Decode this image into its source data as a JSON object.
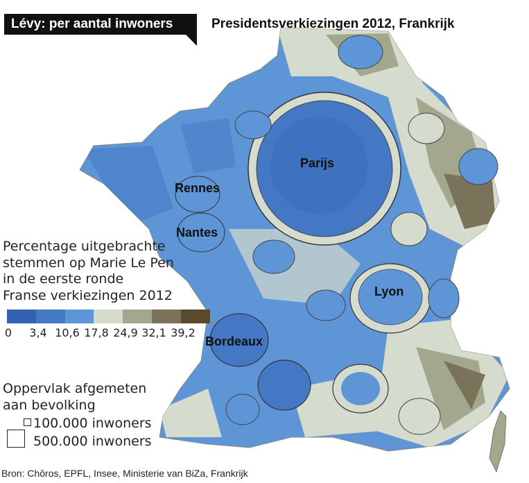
{
  "header": {
    "tag_label": "Lévy: per aantal inwoners",
    "title": "Presidentsverkiezingen 2012, Frankrijk"
  },
  "cities": [
    {
      "name": "Parijs"
    },
    {
      "name": "Rennes"
    },
    {
      "name": "Nantes"
    },
    {
      "name": "Lyon"
    },
    {
      "name": "Bordeaux"
    }
  ],
  "legend": {
    "title_lines": [
      "Percentage uitgebrachte",
      "stemmen op Marie Le Pen",
      "in de eerste ronde",
      "Franse verkiezingen 2012"
    ],
    "colors": [
      "#3461b3",
      "#4478c4",
      "#5e95d6",
      "#d6dccd",
      "#a3a78e",
      "#7b725a",
      "#5a4a2b"
    ],
    "ticks": [
      "0",
      "3,4",
      "10,6",
      "17,8",
      "24,9",
      "32,1",
      "39,2"
    ]
  },
  "area_legend": {
    "title_lines": [
      "Oppervlak afgemeten",
      "aan bevolking"
    ],
    "small_label": "100.000 inwoners",
    "large_label": "500.000 inwoners"
  },
  "source": "Bron: Chôros, EPFL, Insee, Ministerie van BiZa, Frankrijk"
}
